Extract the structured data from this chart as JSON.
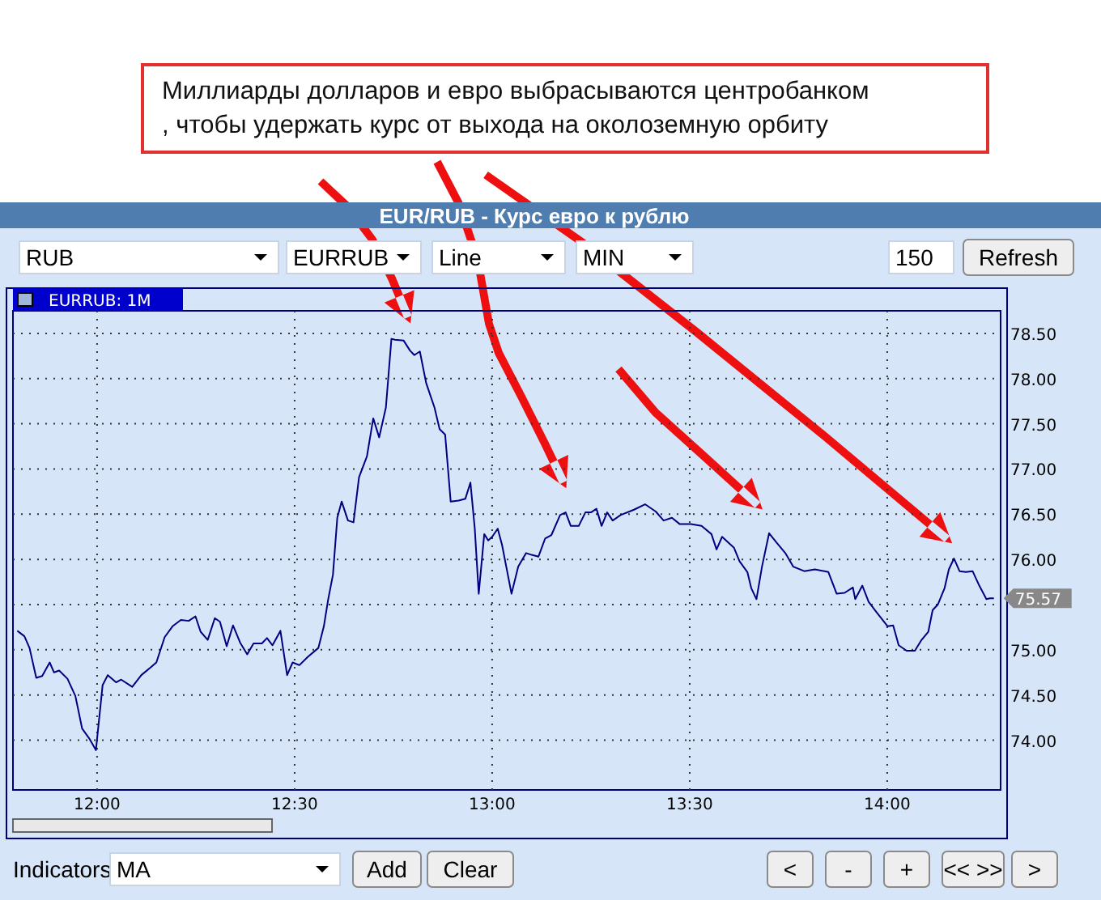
{
  "chart_data": {
    "type": "line",
    "title": "EUR/RUB - Курс евро к рублю",
    "xlim": [
      11.787,
      14.287
    ],
    "ylim": [
      73.45,
      78.75
    ],
    "xticks": [
      {
        "value": 12,
        "label": "12:00"
      },
      {
        "value": 12.5,
        "label": "12:30"
      },
      {
        "value": 13,
        "label": "13:00"
      },
      {
        "value": 13.5,
        "label": "13:30"
      },
      {
        "value": 14,
        "label": "14:00"
      }
    ],
    "yticks": [
      {
        "value": 74,
        "label": "74.00"
      },
      {
        "value": 74.5,
        "label": "74.50"
      },
      {
        "value": 75,
        "label": "75.00"
      },
      {
        "value": 75.5,
        "label": null
      },
      {
        "value": 76,
        "label": "76.00"
      },
      {
        "value": 76.5,
        "label": "76.50"
      },
      {
        "value": 77,
        "label": "77.00"
      },
      {
        "value": 77.5,
        "label": "77.50"
      },
      {
        "value": 78,
        "label": "78.00"
      },
      {
        "value": 78.5,
        "label": "78.50"
      }
    ],
    "grid": true,
    "legend": "top left",
    "marker": "none",
    "line_style": "solid",
    "series": [
      {
        "name": "EURRUB: 1M",
        "color": "#000080",
        "x": [
          11.798,
          11.816,
          11.829,
          11.846,
          11.861,
          11.88,
          11.891,
          11.904,
          11.925,
          11.945,
          11.962,
          11.98,
          11.997,
          12.014,
          12.027,
          12.048,
          12.061,
          12.089,
          12.112,
          12.137,
          12.15,
          12.171,
          12.191,
          12.212,
          12.232,
          12.249,
          12.262,
          12.28,
          12.298,
          12.311,
          12.328,
          12.344,
          12.362,
          12.38,
          12.396,
          12.417,
          12.43,
          12.444,
          12.464,
          12.481,
          12.495,
          12.512,
          12.533,
          12.56,
          12.574,
          12.585,
          12.597,
          12.608,
          12.619,
          12.635,
          12.649,
          12.663,
          12.683,
          12.699,
          12.714,
          12.731,
          12.745,
          12.754,
          12.776,
          12.792,
          12.803,
          12.817,
          12.833,
          12.854,
          12.867,
          12.881,
          12.895,
          12.915,
          12.932,
          12.945,
          12.956,
          12.966,
          12.98,
          12.99,
          13.0,
          13.014,
          13.025,
          13.049,
          13.066,
          13.086,
          13.1,
          13.117,
          13.134,
          13.15,
          13.172,
          13.186,
          13.199,
          13.219,
          13.236,
          13.25,
          13.264,
          13.277,
          13.291,
          13.305,
          13.325,
          13.359,
          13.387,
          13.414,
          13.434,
          13.455,
          13.475,
          13.503,
          13.53,
          13.555,
          13.568,
          13.582,
          13.612,
          13.626,
          13.646,
          13.656,
          13.669,
          13.683,
          13.701,
          13.719,
          13.742,
          13.762,
          13.79,
          13.817,
          13.851,
          13.872,
          13.892,
          13.913,
          13.919,
          13.937,
          13.953,
          13.974,
          14.001,
          14.015,
          14.029,
          14.049,
          14.07,
          14.087,
          14.104,
          14.115,
          14.128,
          14.145,
          14.156,
          14.169,
          14.183,
          14.199,
          14.216,
          14.233,
          14.251,
          14.26,
          14.27
        ],
        "values": [
          75.21,
          75.15,
          75.02,
          74.69,
          74.71,
          74.86,
          74.75,
          74.77,
          74.68,
          74.49,
          74.13,
          74.02,
          73.89,
          74.61,
          74.72,
          74.64,
          74.67,
          74.59,
          74.72,
          74.81,
          74.86,
          75.14,
          75.26,
          75.33,
          75.32,
          75.37,
          75.2,
          75.11,
          75.35,
          75.31,
          75.04,
          75.27,
          75.08,
          74.95,
          75.07,
          75.07,
          75.13,
          75.05,
          75.21,
          74.72,
          74.86,
          74.83,
          74.92,
          75.02,
          75.26,
          75.56,
          75.83,
          76.46,
          76.64,
          76.43,
          76.41,
          76.91,
          77.14,
          77.56,
          77.35,
          77.68,
          78.44,
          78.43,
          78.42,
          78.31,
          78.26,
          78.3,
          77.95,
          77.68,
          77.44,
          77.38,
          76.64,
          76.65,
          76.67,
          76.85,
          76.34,
          75.62,
          76.28,
          76.21,
          76.25,
          76.34,
          76.16,
          75.62,
          75.92,
          76.07,
          76.05,
          76.03,
          76.23,
          76.27,
          76.49,
          76.52,
          76.37,
          76.37,
          76.52,
          76.52,
          76.56,
          76.37,
          76.52,
          76.43,
          76.49,
          76.55,
          76.61,
          76.53,
          76.43,
          76.46,
          76.39,
          76.39,
          76.37,
          76.28,
          76.11,
          76.25,
          76.13,
          75.98,
          75.86,
          75.68,
          75.56,
          75.92,
          76.29,
          76.19,
          76.07,
          75.92,
          75.87,
          75.89,
          75.86,
          75.62,
          75.63,
          75.69,
          75.56,
          75.71,
          75.53,
          75.41,
          75.26,
          75.27,
          75.05,
          74.99,
          74.99,
          75.11,
          75.2,
          75.44,
          75.5,
          75.68,
          75.89,
          76.01,
          75.87,
          75.86,
          75.87,
          75.71,
          75.56,
          75.57,
          75.57
        ]
      }
    ],
    "annotations": [
      "Миллиарды долларов и евро выбрасываются центробанком\n, чтобы удержать курс от выхода на околоземную орбиту",
      {
        "text": "75.57",
        "x": 14.27,
        "y": 75.57
      },
      "RUB",
      "EURRUB",
      "Line",
      "MIN",
      "150",
      "Refresh",
      "Indicators",
      "MA",
      "Add",
      "Clear",
      "<",
      "-",
      "+",
      "<< >>",
      ">"
    ]
  }
}
